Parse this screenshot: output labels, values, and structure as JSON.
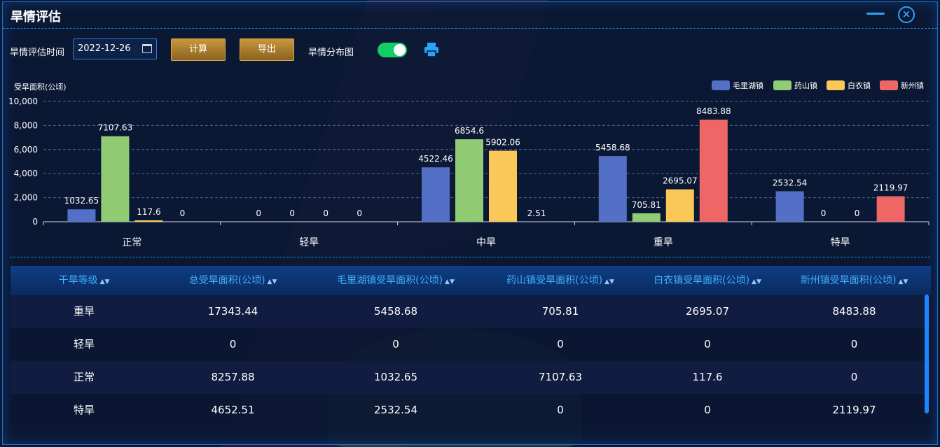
{
  "window": {
    "title": "旱情评估"
  },
  "toolbar": {
    "date_label": "旱情评估时间",
    "date_value": "2022-12-26",
    "calc_label": "计算",
    "export_label": "导出",
    "map_label": "旱情分布图",
    "map_toggle_on": true
  },
  "colors": {
    "accent": "#2aa3ff",
    "button": "#c9963a",
    "toggle": "#13ce66"
  },
  "chart_data": {
    "type": "bar",
    "ylabel": "受旱面积(公顷)",
    "ylim": [
      0,
      10000
    ],
    "yticks": [
      "0",
      "2,000",
      "4,000",
      "6,000",
      "8,000",
      "10,000"
    ],
    "categories": [
      "正常",
      "轻旱",
      "中旱",
      "重旱",
      "特旱"
    ],
    "legend_position": "top-right",
    "grid": true,
    "series": [
      {
        "name": "毛里湖镇",
        "color": "#5470c6",
        "values": [
          1032.65,
          0,
          4522.46,
          5458.68,
          2532.54
        ],
        "labels": [
          "1032.65",
          "0",
          "4522.46",
          "5458.68",
          "2532.54"
        ]
      },
      {
        "name": "药山镇",
        "color": "#91cc75",
        "values": [
          7107.63,
          0,
          6854.6,
          705.81,
          0
        ],
        "labels": [
          "7107.63",
          "0",
          "6854.6",
          "705.81",
          "0"
        ]
      },
      {
        "name": "白衣镇",
        "color": "#fac858",
        "values": [
          117.6,
          0,
          5902.06,
          2695.07,
          0
        ],
        "labels": [
          "117.6",
          "0",
          "5902.06",
          "2695.07",
          "0"
        ]
      },
      {
        "name": "新州镇",
        "color": "#ee6666",
        "values": [
          0,
          0,
          2.51,
          8483.88,
          2119.97
        ],
        "labels": [
          "0",
          "0",
          "2.51",
          "8483.88",
          "2119.97"
        ]
      }
    ]
  },
  "table": {
    "headers": [
      "干旱等级",
      "总受旱面积(公顷)",
      "毛里湖镇受旱面积(公顷)",
      "药山镇受旱面积(公顷)",
      "白衣镇受旱面积(公顷)",
      "新州镇受旱面积(公顷)"
    ],
    "rows": [
      [
        "重旱",
        "17343.44",
        "5458.68",
        "705.81",
        "2695.07",
        "8483.88"
      ],
      [
        "轻旱",
        "0",
        "0",
        "0",
        "0",
        "0"
      ],
      [
        "正常",
        "8257.88",
        "1032.65",
        "7107.63",
        "117.6",
        "0"
      ],
      [
        "特旱",
        "4652.51",
        "2532.54",
        "0",
        "0",
        "2119.97"
      ]
    ]
  }
}
